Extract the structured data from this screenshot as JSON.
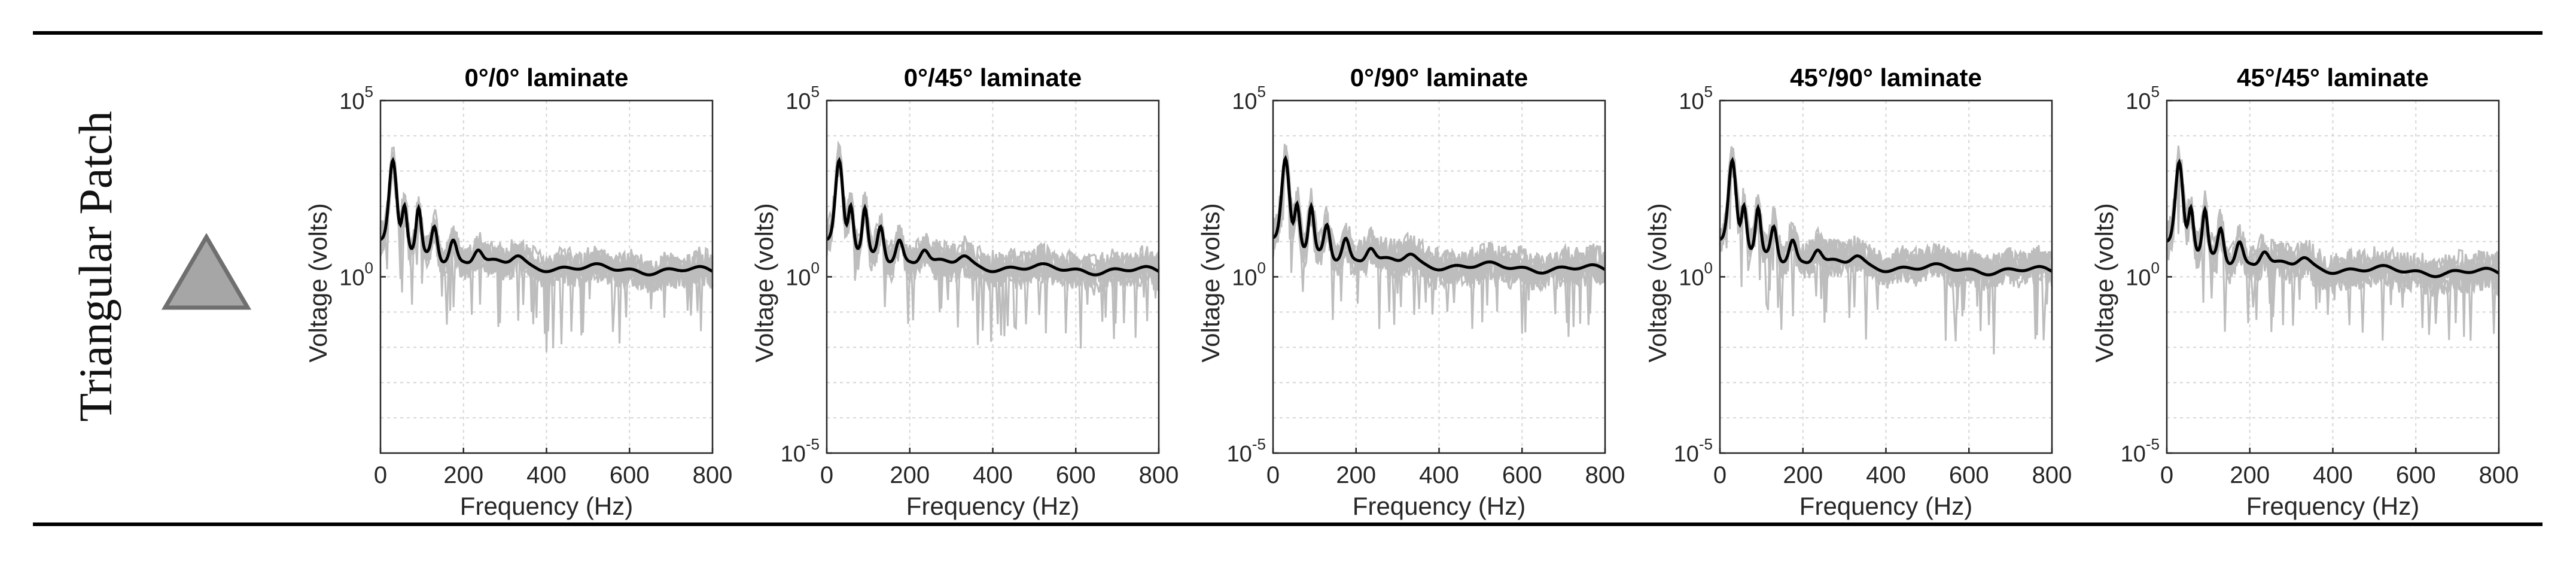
{
  "row_label": "Triangular Patch",
  "row_icon": "triangle-icon",
  "colors": {
    "trace": "#000000",
    "scatter": "#bdbdbd",
    "grid": "#d6d6d6",
    "icon_fill": "#a6a6a6",
    "icon_stroke": "#6f6f6f"
  },
  "chart_data": [
    {
      "type": "line",
      "title": "0°/0° laminate",
      "xlabel": "Frequency (Hz)",
      "ylabel": "Voltage (volts)",
      "xlim": [
        0,
        800
      ],
      "ylim": [
        1e-05,
        100000.0
      ],
      "yscale": "log",
      "grid": true,
      "xticks": [
        "0",
        "200",
        "400",
        "600",
        "800"
      ],
      "yticks": [
        {
          "base": "10",
          "exp": "5"
        },
        {
          "base": "10",
          "exp": "0"
        }
      ]
    },
    {
      "type": "line",
      "title": "0°/45° laminate",
      "xlabel": "Frequency (Hz)",
      "ylabel": "Voltage (volts)",
      "xlim": [
        0,
        800
      ],
      "ylim": [
        1e-05,
        100000.0
      ],
      "yscale": "log",
      "grid": true,
      "xticks": [
        "0",
        "200",
        "400",
        "600",
        "800"
      ],
      "yticks": [
        {
          "base": "10",
          "exp": "5"
        },
        {
          "base": "10",
          "exp": "0"
        },
        {
          "base": "10",
          "exp": "-5"
        }
      ]
    },
    {
      "type": "line",
      "title": "0°/90° laminate",
      "xlabel": "Frequency (Hz)",
      "ylabel": "Voltage (volts)",
      "xlim": [
        0,
        800
      ],
      "ylim": [
        1e-05,
        100000.0
      ],
      "yscale": "log",
      "grid": true,
      "xticks": [
        "0",
        "200",
        "400",
        "600",
        "800"
      ],
      "yticks": [
        {
          "base": "10",
          "exp": "5"
        },
        {
          "base": "10",
          "exp": "0"
        },
        {
          "base": "10",
          "exp": "-5"
        }
      ]
    },
    {
      "type": "line",
      "title": "45°/90° laminate",
      "xlabel": "Frequency (Hz)",
      "ylabel": "Voltage (volts)",
      "xlim": [
        0,
        800
      ],
      "ylim": [
        1e-05,
        100000.0
      ],
      "yscale": "log",
      "grid": true,
      "xticks": [
        "0",
        "200",
        "400",
        "600",
        "800"
      ],
      "yticks": [
        {
          "base": "10",
          "exp": "5"
        },
        {
          "base": "10",
          "exp": "0"
        },
        {
          "base": "10",
          "exp": "-5"
        }
      ]
    },
    {
      "type": "line",
      "title": "45°/45° laminate",
      "xlabel": "Frequency (Hz)",
      "ylabel": "Voltage (volts)",
      "xlim": [
        0,
        800
      ],
      "ylim": [
        1e-05,
        100000.0
      ],
      "yscale": "log",
      "grid": true,
      "xticks": [
        "0",
        "200",
        "400",
        "600",
        "800"
      ],
      "yticks": [
        {
          "base": "10",
          "exp": "5"
        },
        {
          "base": "10",
          "exp": "0"
        },
        {
          "base": "10",
          "exp": "-5"
        }
      ]
    }
  ]
}
